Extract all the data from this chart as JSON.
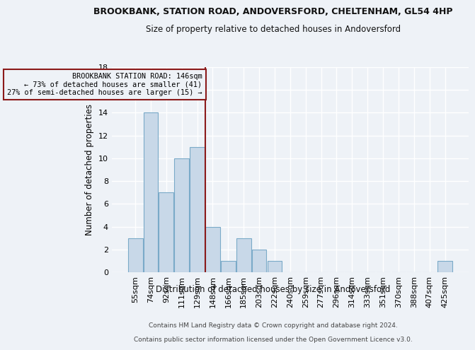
{
  "title1": "BROOKBANK, STATION ROAD, ANDOVERSFORD, CHELTENHAM, GL54 4HP",
  "title2": "Size of property relative to detached houses in Andoversford",
  "xlabel": "Distribution of detached houses by size in Andoversford",
  "ylabel": "Number of detached properties",
  "footer1": "Contains HM Land Registry data © Crown copyright and database right 2024.",
  "footer2": "Contains public sector information licensed under the Open Government Licence v3.0.",
  "annotation_line1": "BROOKBANK STATION ROAD: 146sqm",
  "annotation_line2": "← 73% of detached houses are smaller (41)",
  "annotation_line3": "27% of semi-detached houses are larger (15) →",
  "bar_color": "#c8d8e8",
  "bar_edge_color": "#7aaac8",
  "reference_line_color": "#8b1a1a",
  "categories": [
    "55sqm",
    "74sqm",
    "92sqm",
    "111sqm",
    "129sqm",
    "148sqm",
    "166sqm",
    "185sqm",
    "203sqm",
    "222sqm",
    "240sqm",
    "259sqm",
    "277sqm",
    "296sqm",
    "314sqm",
    "333sqm",
    "351sqm",
    "370sqm",
    "388sqm",
    "407sqm",
    "425sqm"
  ],
  "values": [
    3,
    14,
    7,
    10,
    11,
    4,
    1,
    3,
    2,
    1,
    0,
    0,
    0,
    0,
    0,
    0,
    0,
    0,
    0,
    0,
    1
  ],
  "ylim": [
    0,
    18
  ],
  "yticks": [
    0,
    2,
    4,
    6,
    8,
    10,
    12,
    14,
    16,
    18
  ],
  "background_color": "#eef2f7",
  "grid_color": "#ffffff",
  "title1_fontsize": 9,
  "title2_fontsize": 8.5,
  "ylabel_fontsize": 8.5,
  "xlabel_fontsize": 8.5,
  "tick_fontsize": 8,
  "footer_fontsize": 6.5
}
